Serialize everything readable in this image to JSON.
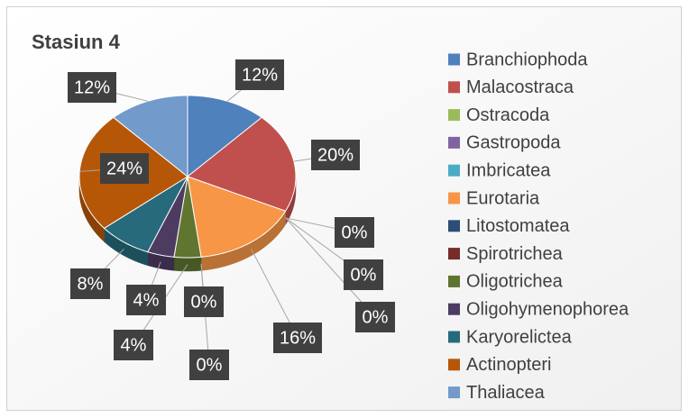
{
  "chart_data": {
    "type": "pie",
    "title": "Stasiun 4",
    "categories": [
      "Branchiophoda",
      "Malacostraca",
      "Ostracoda",
      "Gastropoda",
      "Imbricatea",
      "Eurotaria",
      "Litostomatea",
      "Spirotrichea",
      "Oligotrichea",
      "Oligohymenophorea",
      "Karyorelictea",
      "Actinopteri",
      "Thaliacea"
    ],
    "values": [
      12,
      20,
      0,
      0,
      0,
      16,
      0,
      0,
      4,
      4,
      8,
      24,
      12
    ],
    "value_labels": [
      "12%",
      "20%",
      "0%",
      "0%",
      "0%",
      "16%",
      "0%",
      "0%",
      "4%",
      "4%",
      "8%",
      "24%",
      "12%"
    ],
    "colors": [
      "#4f81bd",
      "#c0504d",
      "#9bbb59",
      "#8064a2",
      "#4bacc6",
      "#f79646",
      "#2c4d75",
      "#772c2a",
      "#5f7530",
      "#4d3b62",
      "#276a7c",
      "#b65708",
      "#729aca"
    ],
    "legend": "right"
  }
}
